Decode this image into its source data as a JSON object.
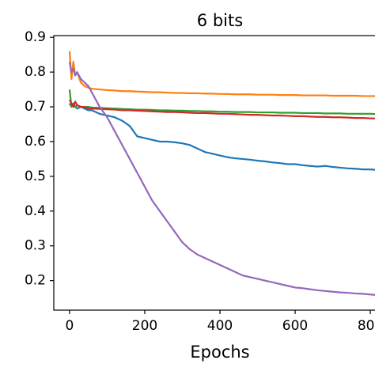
{
  "chart_data": {
    "type": "line",
    "title": "6 bits",
    "xlabel": "Epochs",
    "x": [
      0,
      5,
      10,
      15,
      20,
      30,
      40,
      50,
      60,
      80,
      100,
      120,
      140,
      160,
      180,
      200,
      220,
      240,
      260,
      280,
      300,
      320,
      340,
      360,
      380,
      400,
      420,
      440,
      460,
      480,
      500,
      520,
      540,
      560,
      580,
      600,
      620,
      640,
      660,
      680,
      700,
      720,
      740,
      760,
      780,
      800,
      820
    ],
    "series": [
      {
        "color": "#1f77b4",
        "values": [
          0.71,
          0.7,
          0.705,
          0.7,
          0.695,
          0.7,
          0.695,
          0.69,
          0.69,
          0.68,
          0.675,
          0.67,
          0.66,
          0.645,
          0.615,
          0.61,
          0.605,
          0.6,
          0.6,
          0.598,
          0.595,
          0.59,
          0.58,
          0.57,
          0.565,
          0.56,
          0.555,
          0.552,
          0.55,
          0.548,
          0.545,
          0.543,
          0.54,
          0.538,
          0.535,
          0.535,
          0.532,
          0.53,
          0.528,
          0.53,
          0.527,
          0.525,
          0.523,
          0.522,
          0.52,
          0.52,
          0.518
        ]
      },
      {
        "color": "#ff7f0e",
        "values": [
          0.86,
          0.78,
          0.83,
          0.79,
          0.8,
          0.77,
          0.76,
          0.755,
          0.752,
          0.75,
          0.748,
          0.747,
          0.745,
          0.745,
          0.744,
          0.743,
          0.742,
          0.742,
          0.741,
          0.74,
          0.74,
          0.739,
          0.739,
          0.738,
          0.738,
          0.737,
          0.737,
          0.736,
          0.736,
          0.736,
          0.735,
          0.735,
          0.735,
          0.734,
          0.734,
          0.734,
          0.733,
          0.733,
          0.733,
          0.733,
          0.732,
          0.732,
          0.732,
          0.732,
          0.731,
          0.731,
          0.731
        ]
      },
      {
        "color": "#2ca02c",
        "values": [
          0.75,
          0.7,
          0.71,
          0.7,
          0.705,
          0.7,
          0.7,
          0.7,
          0.698,
          0.697,
          0.696,
          0.695,
          0.694,
          0.693,
          0.692,
          0.692,
          0.691,
          0.69,
          0.69,
          0.689,
          0.689,
          0.688,
          0.688,
          0.687,
          0.687,
          0.686,
          0.686,
          0.685,
          0.685,
          0.685,
          0.684,
          0.684,
          0.684,
          0.683,
          0.683,
          0.683,
          0.682,
          0.682,
          0.682,
          0.681,
          0.681,
          0.681,
          0.68,
          0.68,
          0.68,
          0.68,
          0.679
        ]
      },
      {
        "color": "#d62728",
        "values": [
          0.72,
          0.71,
          0.7,
          0.715,
          0.705,
          0.7,
          0.7,
          0.695,
          0.695,
          0.694,
          0.693,
          0.692,
          0.69,
          0.69,
          0.689,
          0.688,
          0.687,
          0.686,
          0.685,
          0.685,
          0.684,
          0.683,
          0.682,
          0.682,
          0.681,
          0.68,
          0.68,
          0.679,
          0.678,
          0.677,
          0.677,
          0.676,
          0.675,
          0.675,
          0.674,
          0.673,
          0.673,
          0.672,
          0.671,
          0.671,
          0.67,
          0.67,
          0.669,
          0.668,
          0.668,
          0.667,
          0.666
        ]
      },
      {
        "color": "#9467bd",
        "values": [
          0.83,
          0.8,
          0.81,
          0.79,
          0.8,
          0.78,
          0.77,
          0.76,
          0.74,
          0.7,
          0.67,
          0.63,
          0.59,
          0.55,
          0.51,
          0.47,
          0.43,
          0.4,
          0.37,
          0.34,
          0.31,
          0.29,
          0.275,
          0.265,
          0.255,
          0.245,
          0.235,
          0.225,
          0.215,
          0.21,
          0.205,
          0.2,
          0.195,
          0.19,
          0.185,
          0.18,
          0.178,
          0.175,
          0.172,
          0.17,
          0.168,
          0.166,
          0.165,
          0.163,
          0.162,
          0.16,
          0.158
        ]
      }
    ],
    "xlim": [
      -42,
      842
    ],
    "ylim": [
      0.115,
      0.905
    ],
    "xticks": [
      0,
      200,
      400,
      600,
      800
    ],
    "yticks": [
      0.2,
      0.3,
      0.4,
      0.5,
      0.6,
      0.7,
      0.8,
      0.9
    ]
  }
}
